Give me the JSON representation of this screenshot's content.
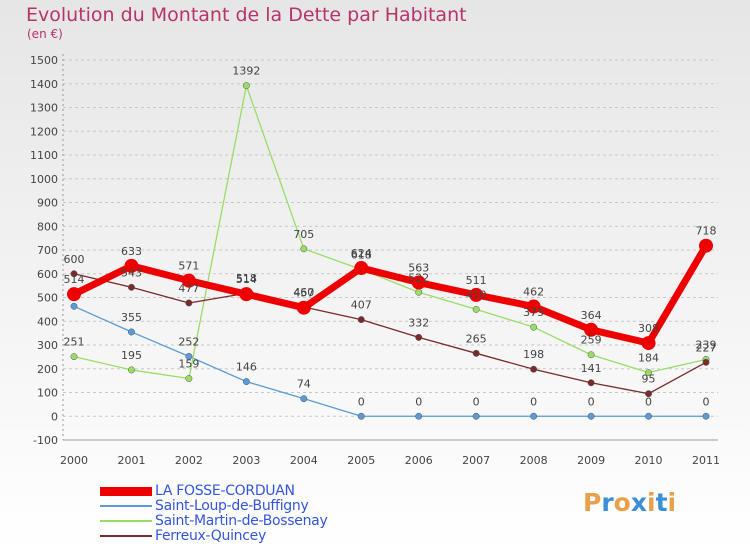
{
  "header": {
    "title": "Evolution du Montant de la Dette par Habitant",
    "unit": "(en €)"
  },
  "brand": "Proxiti",
  "colors": {
    "title": "#b8336a",
    "grid": "#c8c8c8",
    "brand_letters": [
      "#e8a04a",
      "#3a8fd8",
      "#e8a04a",
      "#3a8fd8",
      "#e8a04a",
      "#3a8fd8",
      "#e8a04a"
    ]
  },
  "chart_data": {
    "type": "line",
    "title": "Evolution du Montant de la Dette par Habitant",
    "ylabel": "(en €)",
    "xlabel": "",
    "x": [
      "2000",
      "2001",
      "2002",
      "2003",
      "2004",
      "2005",
      "2006",
      "2007",
      "2008",
      "2009",
      "2010",
      "2011"
    ],
    "ylim": [
      -100,
      1500
    ],
    "yticks": [
      -100,
      0,
      100,
      200,
      300,
      400,
      500,
      600,
      700,
      800,
      900,
      1000,
      1100,
      1200,
      1300,
      1400,
      1500
    ],
    "grid": "horizontal-dashed",
    "legend_position": "bottom-left",
    "series": [
      {
        "name": "LA FOSSE-CORDUAN",
        "color": "#ee0000",
        "values": [
          514,
          633,
          571,
          514,
          457,
          624,
          563,
          511,
          462,
          364,
          308,
          718
        ]
      },
      {
        "name": "Saint-Loup-de-Buffigny",
        "color": "#5b9bd5",
        "values": [
          463,
          355,
          252,
          146,
          74,
          0,
          0,
          0,
          0,
          0,
          0,
          0
        ]
      },
      {
        "name": "Saint-Martin-de-Bossenay",
        "color": "#99dd66",
        "values": [
          251,
          195,
          159,
          1392,
          705,
          618,
          522,
          450,
          375,
          259,
          184,
          239
        ]
      },
      {
        "name": "Ferreux-Quincey",
        "color": "#7a2a2a",
        "values": [
          600,
          543,
          477,
          518,
          460,
          407,
          332,
          265,
          198,
          141,
          95,
          227
        ]
      }
    ],
    "data_labels": [
      [
        "514",
        "633",
        "571",
        "514",
        "457",
        "624",
        "563",
        "511",
        "462",
        "364",
        "308",
        "718"
      ],
      [
        "",
        "355",
        "252",
        "146",
        "74",
        "0",
        "0",
        "0",
        "0",
        "0",
        "0",
        "0"
      ],
      [
        "251",
        "195",
        "159",
        "1392",
        "705",
        "618",
        "522",
        "450",
        "375",
        "259",
        "184",
        "239"
      ],
      [
        "600",
        "543",
        "477",
        "518",
        "460",
        "407",
        "332",
        "265",
        "198",
        "141",
        "95",
        "227"
      ]
    ]
  }
}
